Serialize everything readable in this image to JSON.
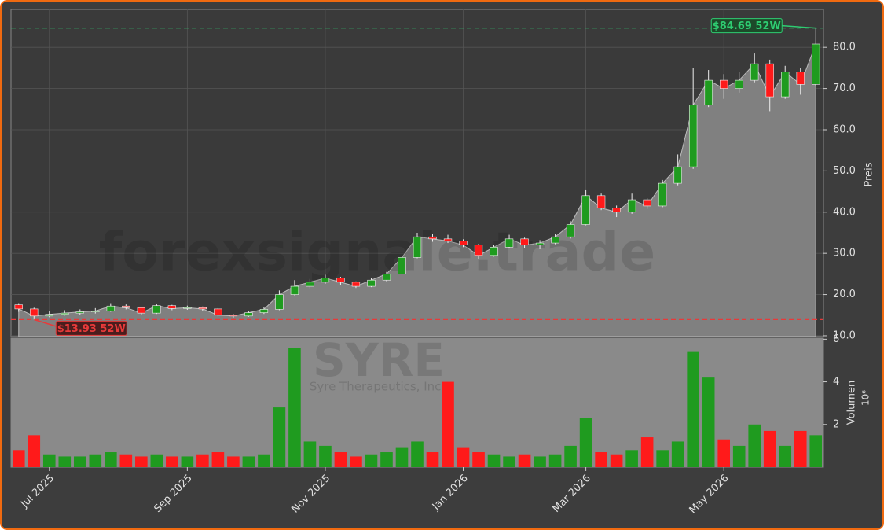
{
  "chart_data": {
    "type": "candlestick",
    "watermark": "forexsignale.trade",
    "symbol": "SYRE",
    "company": "Syre Therapeutics, Inc.",
    "categories": [
      null,
      null,
      "Jul 2025",
      null,
      null,
      null,
      null,
      null,
      null,
      null,
      null,
      "Sep 2025",
      null,
      null,
      null,
      null,
      null,
      null,
      null,
      null,
      "Nov 2025",
      null,
      null,
      null,
      null,
      null,
      null,
      null,
      null,
      "Jan 2026",
      null,
      null,
      null,
      null,
      null,
      null,
      null,
      "Mar 2026",
      null,
      null,
      null,
      null,
      null,
      null,
      null,
      null,
      "May 2026",
      null,
      null,
      null,
      null,
      null,
      null
    ],
    "open": [
      17.5,
      16.5,
      14.8,
      15.2,
      15.5,
      15.8,
      16.0,
      17.2,
      16.8,
      15.5,
      17.3,
      16.6,
      16.8,
      16.5,
      15.0,
      14.8,
      15.6,
      16.4,
      20.0,
      22.0,
      23.0,
      24.0,
      23.0,
      22.0,
      23.5,
      25.0,
      29.0,
      34.0,
      33.5,
      33.0,
      32.0,
      29.5,
      31.5,
      33.5,
      32.0,
      32.5,
      34.0,
      37.0,
      44.0,
      41.0,
      40.0,
      43.0,
      41.5,
      47.0,
      51.0,
      66.0,
      72.0,
      70.0,
      72.0,
      76.0,
      68.0,
      74.0,
      71.0
    ],
    "high": [
      17.9,
      16.8,
      15.9,
      16.2,
      16.4,
      16.7,
      17.9,
      17.6,
      17.0,
      17.8,
      17.5,
      17.3,
      17.1,
      16.7,
      15.3,
      16.0,
      17.0,
      21.0,
      23.5,
      23.8,
      24.8,
      24.3,
      23.2,
      24.0,
      25.5,
      30.0,
      35.0,
      34.8,
      34.5,
      33.4,
      32.3,
      32.0,
      34.5,
      33.8,
      33.2,
      34.8,
      37.8,
      45.5,
      44.5,
      41.6,
      44.5,
      43.4,
      47.8,
      54.0,
      75.0,
      74.5,
      73.5,
      74.0,
      78.5,
      77.0,
      75.5,
      75.0,
      84.69
    ],
    "low": [
      15.8,
      13.93,
      14.5,
      14.9,
      15.1,
      15.4,
      15.8,
      16.4,
      15.1,
      15.3,
      16.2,
      16.3,
      16.0,
      14.7,
      14.4,
      14.6,
      15.3,
      16.2,
      19.8,
      21.5,
      22.6,
      22.4,
      21.6,
      21.8,
      23.2,
      24.8,
      28.8,
      32.8,
      32.5,
      31.5,
      28.5,
      29.2,
      31.2,
      31.2,
      31.0,
      32.2,
      33.6,
      36.8,
      40.5,
      38.8,
      39.6,
      40.8,
      41.2,
      46.5,
      50.5,
      65.5,
      67.5,
      69.0,
      71.5,
      64.5,
      67.5,
      68.5,
      70.5
    ],
    "close": [
      16.5,
      14.8,
      15.2,
      15.5,
      15.8,
      16.0,
      17.2,
      16.8,
      15.5,
      17.3,
      16.6,
      16.8,
      16.5,
      15.0,
      14.8,
      15.6,
      16.4,
      20.0,
      22.0,
      23.0,
      24.0,
      23.0,
      22.0,
      23.5,
      25.0,
      29.0,
      34.0,
      33.5,
      33.0,
      32.0,
      29.5,
      31.5,
      33.5,
      32.0,
      32.5,
      34.0,
      37.0,
      44.0,
      41.0,
      40.0,
      43.0,
      41.5,
      47.0,
      51.0,
      66.0,
      72.0,
      70.0,
      72.0,
      76.0,
      68.0,
      74.0,
      71.0,
      80.8
    ],
    "up_color": "#1f9b1f",
    "down_color": "#ff1a1a",
    "area_color": "#808080",
    "ylim": [
      9.8,
      89.2
    ],
    "yticks": [
      {
        "value": 10,
        "label": "10.0"
      },
      {
        "value": 20,
        "label": "20.0"
      },
      {
        "value": 30,
        "label": "30.0"
      },
      {
        "value": 40,
        "label": "40.0"
      },
      {
        "value": 50,
        "label": "50.0"
      },
      {
        "value": 60,
        "label": "60.0"
      },
      {
        "value": 70,
        "label": "70.0"
      },
      {
        "value": 80,
        "label": "80.0"
      }
    ],
    "y_label": "Preis",
    "grid": true,
    "annotations": [
      {
        "value": 84.69,
        "label": "$84.69 52W",
        "color": "#2ecc71"
      },
      {
        "value": 13.93,
        "label": "$13.93 52W",
        "color": "#e83a3a"
      }
    ],
    "volume": {
      "values": [
        0.8,
        1.5,
        0.6,
        0.5,
        0.5,
        0.6,
        0.7,
        0.6,
        0.5,
        0.6,
        0.5,
        0.5,
        0.6,
        0.7,
        0.5,
        0.5,
        0.6,
        2.8,
        5.6,
        1.2,
        1.0,
        0.7,
        0.5,
        0.6,
        0.7,
        0.9,
        1.2,
        0.7,
        4.0,
        0.9,
        0.7,
        0.6,
        0.5,
        0.6,
        0.5,
        0.6,
        1.0,
        2.3,
        0.7,
        0.6,
        0.8,
        1.4,
        0.8,
        1.2,
        5.4,
        4.2,
        1.3,
        1.0,
        2.0,
        1.7,
        1.0,
        1.7,
        1.5
      ],
      "ylim": [
        0,
        6.05
      ],
      "yticks": [
        2,
        4,
        6
      ],
      "label": "Volumen",
      "scale_label": "10⁶"
    }
  }
}
